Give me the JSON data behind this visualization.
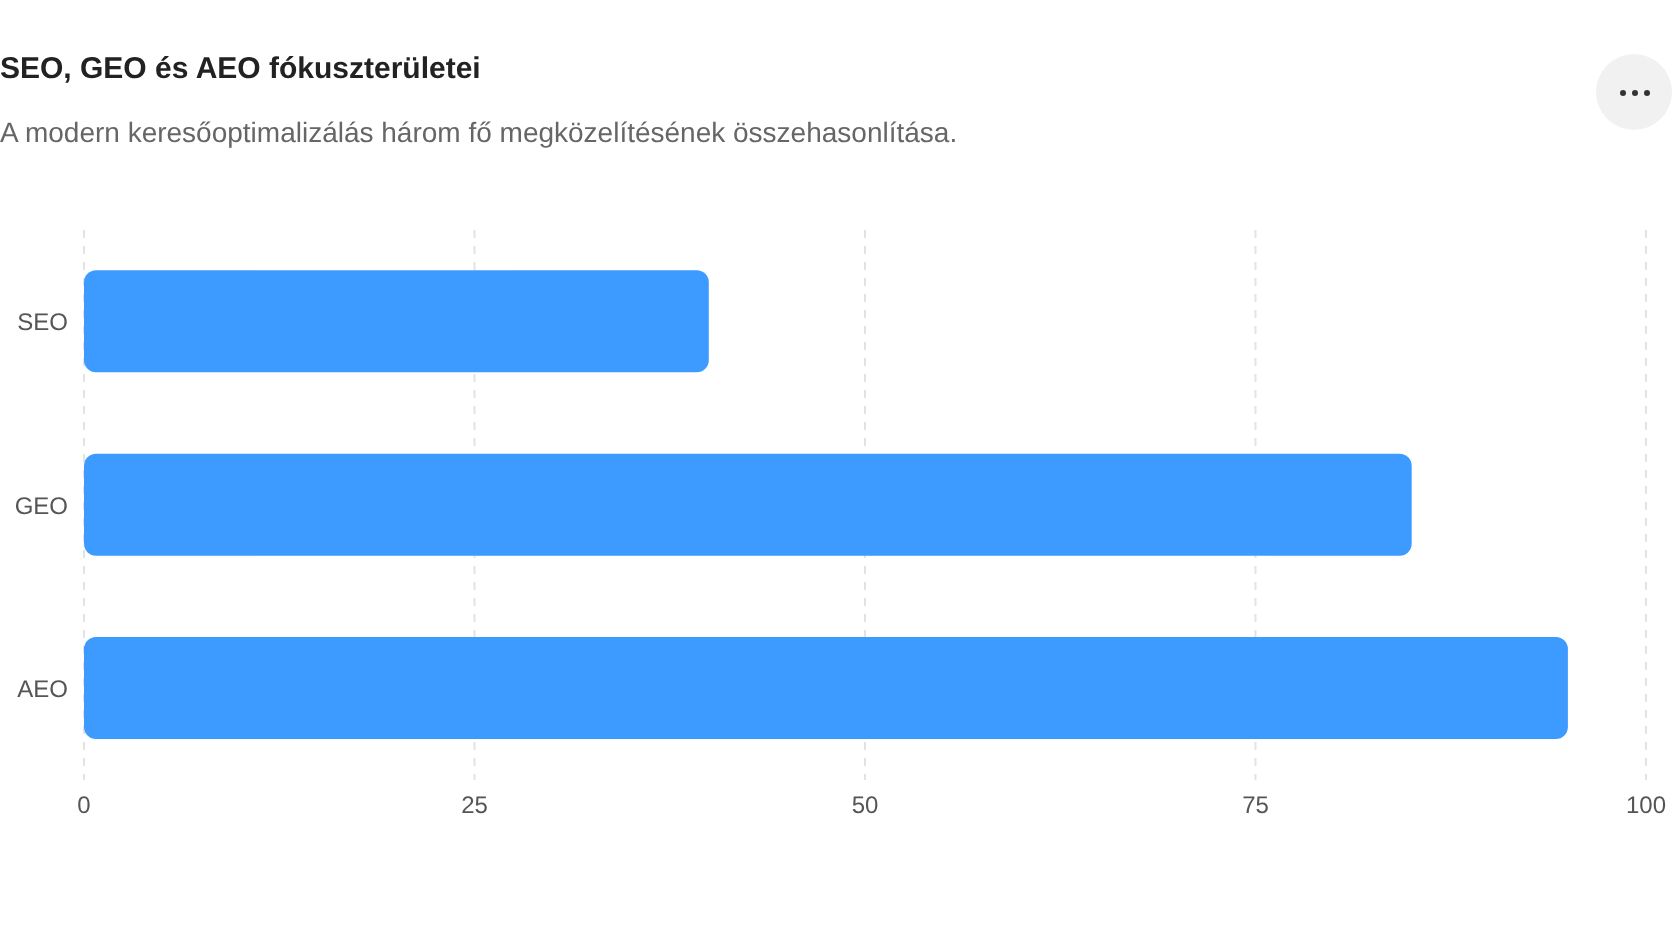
{
  "chart_data": {
    "type": "bar",
    "orientation": "horizontal",
    "title": "SEO, GEO és AEO fókuszterületei",
    "subtitle": "A modern keresőoptimalizálás három fő megközelítésének összehasonlítása.",
    "categories": [
      "SEO",
      "GEO",
      "AEO"
    ],
    "values": [
      40,
      85,
      95
    ],
    "color": "#3d9bff",
    "xlim": [
      0,
      100
    ],
    "xticks": [
      0,
      25,
      50,
      75,
      100
    ],
    "grid": "x"
  }
}
